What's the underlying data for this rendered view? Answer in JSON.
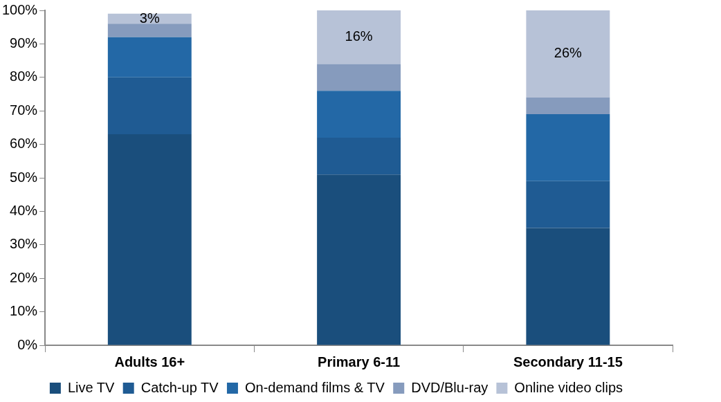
{
  "chart_data": {
    "type": "bar",
    "stacked": true,
    "grid": false,
    "legend": "bottom",
    "categories": [
      "Adults 16+",
      "Primary 6-11",
      "Secondary 11-15"
    ],
    "series": [
      {
        "name": "Live TV",
        "color": "#1a4e7c",
        "values": [
          63,
          51,
          35
        ]
      },
      {
        "name": "Catch-up TV",
        "color": "#1f5b93",
        "values": [
          17,
          11,
          14
        ]
      },
      {
        "name": "On-demand films & TV",
        "color": "#2368a6",
        "values": [
          12,
          14,
          20
        ]
      },
      {
        "name": "DVD/Blu-ray",
        "color": "#869bbd",
        "values": [
          4,
          8,
          5
        ]
      },
      {
        "name": "Online video clips",
        "color": "#b7c2d7",
        "values": [
          3,
          16,
          26
        ],
        "value_labels": [
          "3%",
          "16%",
          "26%"
        ]
      }
    ],
    "ylim": [
      0,
      100
    ],
    "yticks": [
      {
        "value": 0,
        "label": "0%"
      },
      {
        "value": 10,
        "label": "10%"
      },
      {
        "value": 20,
        "label": "20%"
      },
      {
        "value": 30,
        "label": "30%"
      },
      {
        "value": 40,
        "label": "40%"
      },
      {
        "value": 50,
        "label": "50%"
      },
      {
        "value": 60,
        "label": "60%"
      },
      {
        "value": 70,
        "label": "70%"
      },
      {
        "value": 80,
        "label": "80%"
      },
      {
        "value": 90,
        "label": "90%"
      },
      {
        "value": 100,
        "label": "100%"
      }
    ]
  }
}
